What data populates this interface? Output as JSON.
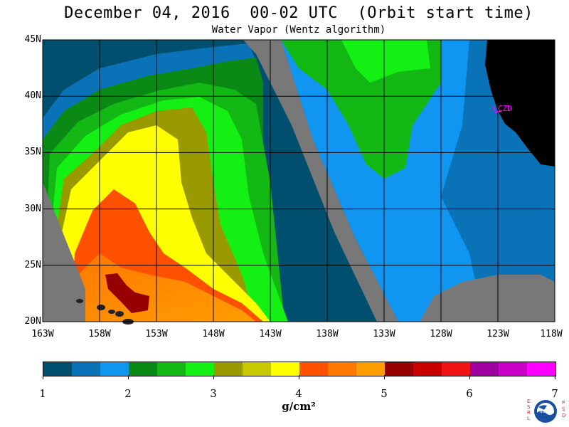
{
  "title": "December 04, 2016  00-02 UTC  (Orbit start time)",
  "subtitle": "Water Vapor (Wentz algorithm)",
  "map": {
    "lat_ticks": [
      "45N",
      "40N",
      "35N",
      "30N",
      "25N",
      "20N"
    ],
    "lon_ticks": [
      "163W",
      "158W",
      "153W",
      "148W",
      "143W",
      "138W",
      "133W",
      "128W",
      "123W",
      "118W"
    ],
    "station_label": "CZD",
    "lon_range": [
      -163,
      -118
    ],
    "lat_range": [
      20,
      45
    ],
    "nodata_color": "#787878",
    "land_color": "#000000",
    "station_color": "#ff00ff"
  },
  "colorbar": {
    "colors": [
      "#014f6e",
      "#0a73b8",
      "#1095f0",
      "#0a8a14",
      "#14b814",
      "#14f014",
      "#999900",
      "#c8c800",
      "#ffff00",
      "#ff5000",
      "#ff7800",
      "#ff9e00",
      "#960000",
      "#c80000",
      "#f01414",
      "#a000a0",
      "#c800c8",
      "#ff00ff"
    ],
    "tick_labels": [
      "1",
      "2",
      "3",
      "4",
      "5",
      "6",
      "7"
    ],
    "units": "g/cm²"
  },
  "logo": {
    "left_letters": "ESRL",
    "right_letters": "PSD",
    "center": "NOAA"
  }
}
